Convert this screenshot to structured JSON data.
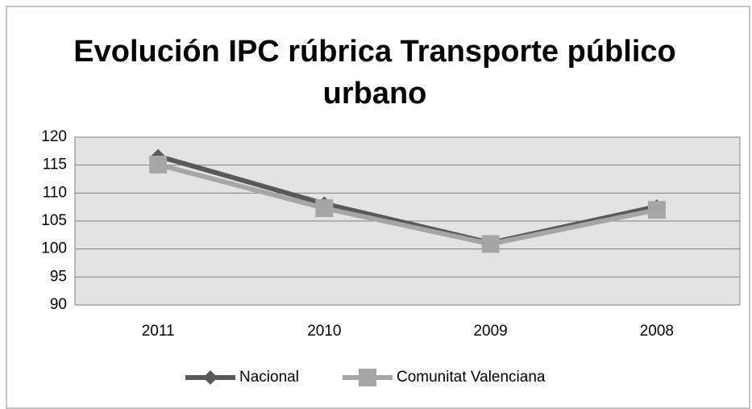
{
  "chart_data": {
    "type": "line",
    "title": "Evolución IPC rúbrica Transporte público urbano",
    "categories": [
      "2011",
      "2010",
      "2009",
      "2008"
    ],
    "series": [
      {
        "name": "Nacional",
        "color": "#595959",
        "marker": "diamond",
        "values": [
          116.6,
          108.1,
          101.1,
          107.6
        ]
      },
      {
        "name": "Comunitat Valenciana",
        "color": "#a6a6a6",
        "marker": "square",
        "values": [
          115.1,
          107.3,
          100.9,
          107.0
        ]
      }
    ],
    "ylim": [
      90,
      120
    ],
    "yticks": [
      90,
      95,
      100,
      105,
      110,
      115,
      120
    ],
    "grid": true,
    "legend": "bottom"
  }
}
